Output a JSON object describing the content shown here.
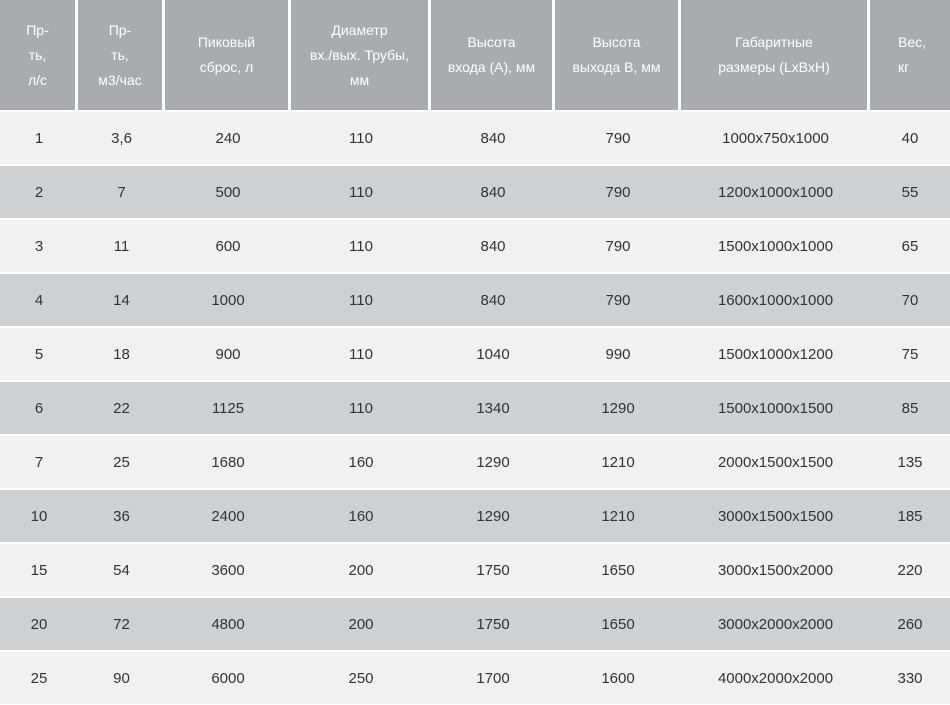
{
  "colors": {
    "header_bg": "#a9abae",
    "header_text": "#ffffff",
    "row_light": "#f1f1f2",
    "row_dark": "#cfd0d2",
    "body_text": "#333333",
    "separator": "#ffffff"
  },
  "chart_data": {
    "type": "table",
    "columns": [
      "Пр-ть, л/с",
      "Пр-ть, м3/час",
      "Пиковый сброс, л",
      "Диаметр вх./вых. Трубы, мм",
      "Высота входа (А), мм",
      "Высота выхода В, мм",
      "Габаритные размеры (LxBxH)",
      "Вес, кг"
    ],
    "header_lines": [
      "Пр-\nть,\nл/с",
      "Пр-\nть,\nм3/час",
      "Пиковый\nсброс, л",
      "Диаметр\nвх./вых. Трубы,\nмм",
      "Высота\nвхода (А), мм",
      "Высота\nвыхода В, мм",
      "Габаритные\nразмеры (LxBxH)",
      "Вес,\nкг"
    ],
    "rows": [
      [
        "1",
        "3,6",
        "240",
        "110",
        "840",
        "790",
        "1000x750x1000",
        "40"
      ],
      [
        "2",
        "7",
        "500",
        "110",
        "840",
        "790",
        "1200x1000x1000",
        "55"
      ],
      [
        "3",
        "11",
        "600",
        "110",
        "840",
        "790",
        "1500x1000x1000",
        "65"
      ],
      [
        "4",
        "14",
        "1000",
        "110",
        "840",
        "790",
        "1600x1000x1000",
        "70"
      ],
      [
        "5",
        "18",
        "900",
        "110",
        "1040",
        "990",
        "1500x1000x1200",
        "75"
      ],
      [
        "6",
        "22",
        "1125",
        "110",
        "1340",
        "1290",
        "1500x1000x1500",
        "85"
      ],
      [
        "7",
        "25",
        "1680",
        "160",
        "1290",
        "1210",
        "2000x1500x1500",
        "135"
      ],
      [
        "10",
        "36",
        "2400",
        "160",
        "1290",
        "1210",
        "3000x1500x1500",
        "185"
      ],
      [
        "15",
        "54",
        "3600",
        "200",
        "1750",
        "1650",
        "3000x1500x2000",
        "220"
      ],
      [
        "20",
        "72",
        "4800",
        "200",
        "1750",
        "1650",
        "3000x2000x2000",
        "260"
      ],
      [
        "25",
        "90",
        "6000",
        "250",
        "1700",
        "1600",
        "4000x2000x2000",
        "330"
      ]
    ]
  }
}
